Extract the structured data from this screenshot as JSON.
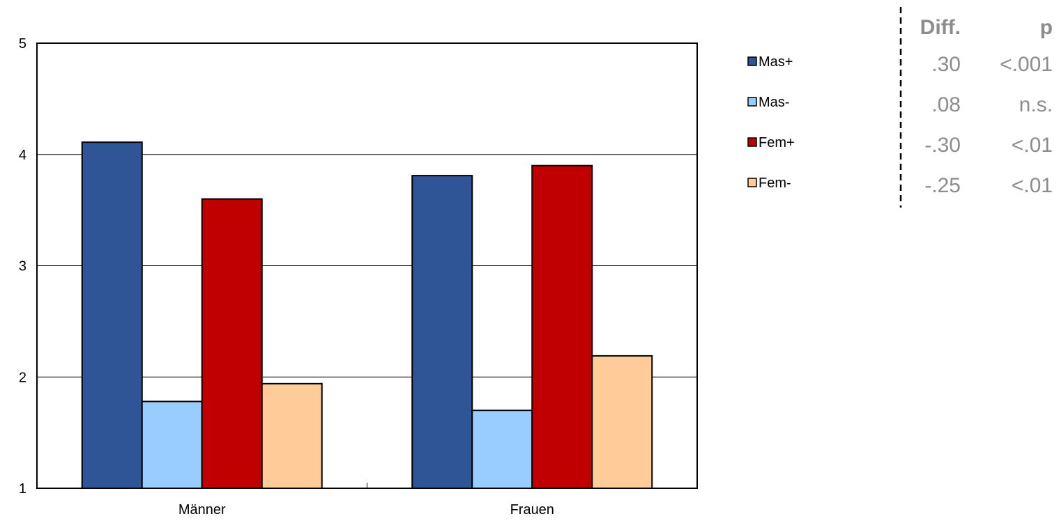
{
  "chart_data": {
    "type": "bar",
    "categories": [
      "Männer",
      "Frauen"
    ],
    "series": [
      {
        "name": "Mas+",
        "values": [
          4.11,
          3.81
        ],
        "color": "#2f5597"
      },
      {
        "name": "Mas-",
        "values": [
          1.78,
          1.7
        ],
        "color": "#99ccff"
      },
      {
        "name": "Fem+",
        "values": [
          3.6,
          3.9
        ],
        "color": "#c00000"
      },
      {
        "name": "Fem-",
        "values": [
          1.94,
          2.19
        ],
        "color": "#ffcc99"
      }
    ],
    "ylim": [
      1,
      5
    ],
    "yticks": [
      1,
      2,
      3,
      4,
      5
    ],
    "grid": true,
    "legend_position": "right"
  },
  "stats_table": {
    "headers": [
      "Diff.",
      "p"
    ],
    "rows": [
      {
        "diff": ".30",
        "p": "<.001"
      },
      {
        "diff": ".08",
        "p": "n.s."
      },
      {
        "diff": "-.30",
        "p": "<.01"
      },
      {
        "diff": "-.25",
        "p": "<.01"
      }
    ]
  }
}
